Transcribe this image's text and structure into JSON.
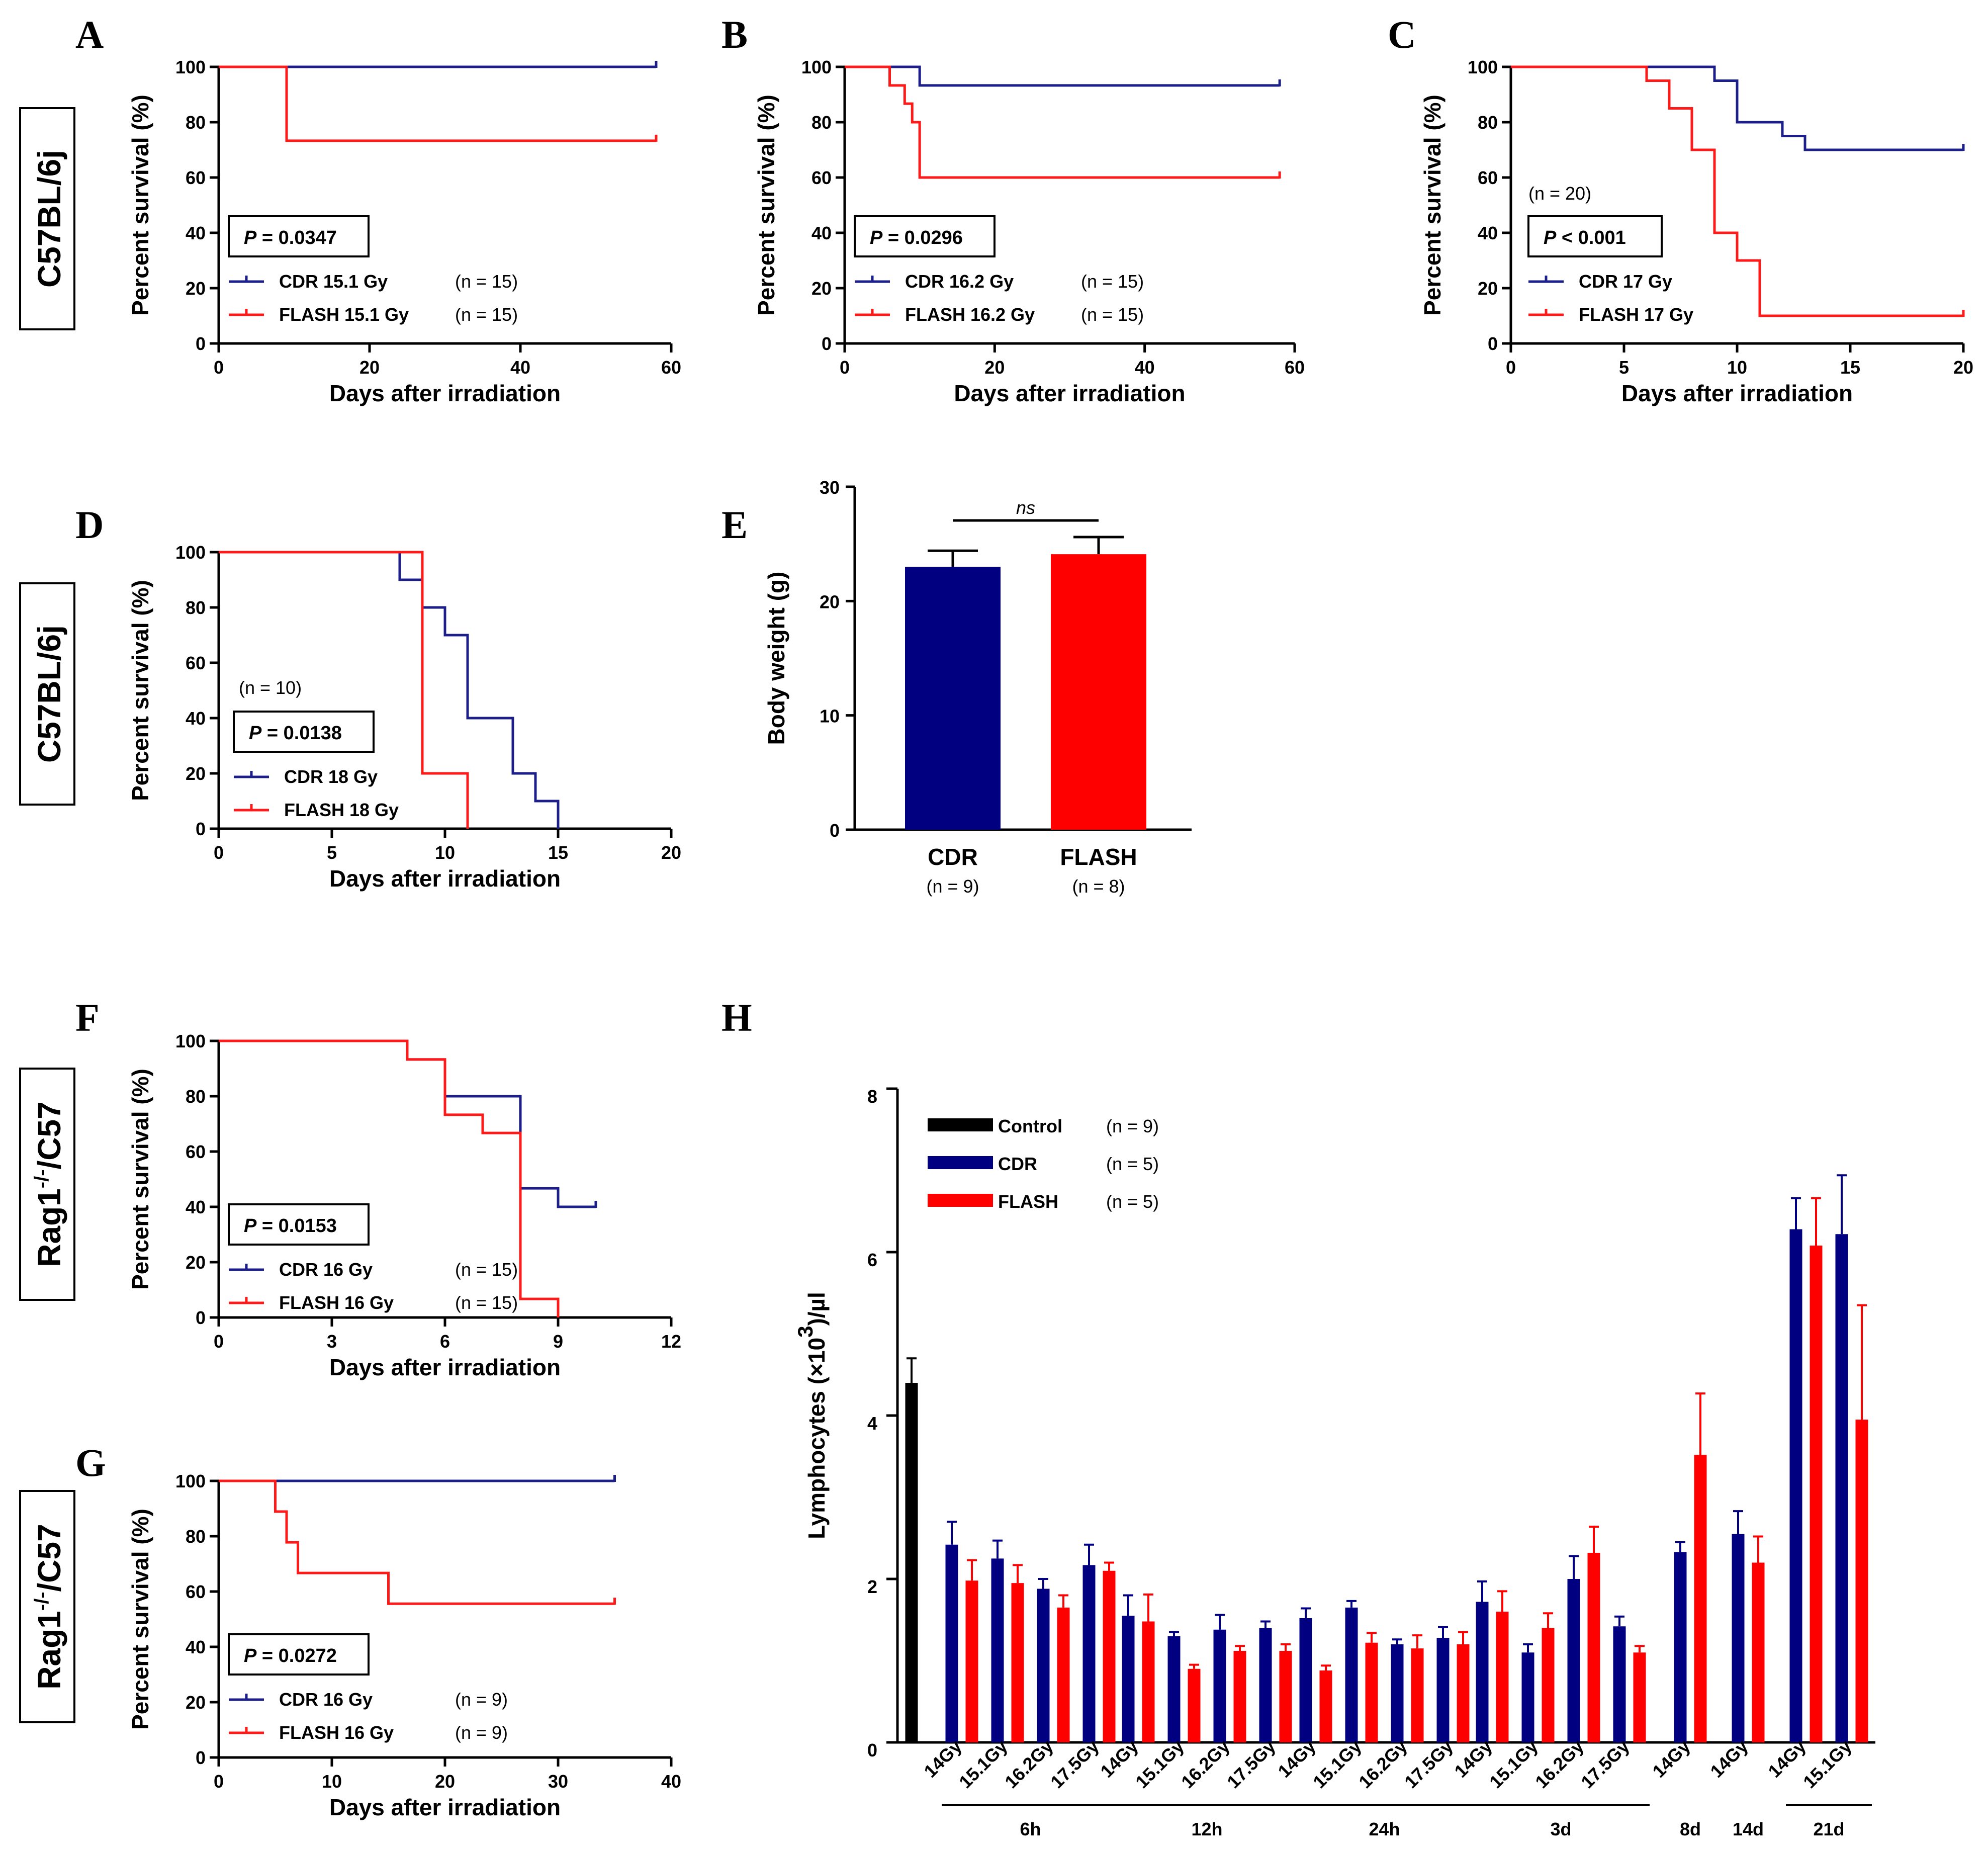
{
  "colors": {
    "cdr": "#1c1f8a",
    "flash": "#ff1a1a",
    "control": "#000000",
    "cdr_bar": "#000080",
    "flash_bar": "#ff0000"
  },
  "strains": [
    "C57BL/6j",
    "C57BL/6j",
    "Rag1",
    "-/-",
    "/C57",
    "Rag1",
    "-/-",
    "/C57"
  ],
  "chart_data": [
    {
      "id": "A",
      "type": "line",
      "letter": "A",
      "xlabel": "Days after irradiation",
      "ylabel": "Percent survival (%)",
      "xlim": [
        0,
        60
      ],
      "ylim": [
        0,
        100
      ],
      "xticks": [
        "0",
        "20",
        "40",
        "60"
      ],
      "yticks": [
        "0",
        "20",
        "40",
        "60",
        "80",
        "100"
      ],
      "pvalue_label": "P",
      "pvalue_text": " = 0.0347",
      "n_note": "",
      "series": [
        {
          "name": "CDR 15.1 Gy",
          "n": "(n = 15)",
          "color": "#1c1f8a",
          "steps": [
            [
              0,
              100
            ],
            [
              58,
              100
            ]
          ]
        },
        {
          "name": "FLASH 15.1 Gy",
          "n": "(n = 15)",
          "color": "#ff1a1a",
          "steps": [
            [
              0,
              100
            ],
            [
              9,
              73.3
            ],
            [
              58,
              73.3
            ]
          ]
        }
      ]
    },
    {
      "id": "B",
      "type": "line",
      "letter": "B",
      "xlabel": "Days after irradiation",
      "ylabel": "Percent survival (%)",
      "xlim": [
        0,
        60
      ],
      "ylim": [
        0,
        100
      ],
      "xticks": [
        "0",
        "20",
        "40",
        "60"
      ],
      "yticks": [
        "0",
        "20",
        "40",
        "60",
        "80",
        "100"
      ],
      "pvalue_label": "P",
      "pvalue_text": " = 0.0296",
      "n_note": "",
      "series": [
        {
          "name": "CDR 16.2 Gy",
          "n": "(n = 15)",
          "color": "#1c1f8a",
          "steps": [
            [
              0,
              100
            ],
            [
              10,
              93.3
            ],
            [
              58,
              93.3
            ]
          ]
        },
        {
          "name": "FLASH 16.2 Gy",
          "n": "(n = 15)",
          "color": "#ff1a1a",
          "steps": [
            [
              0,
              100
            ],
            [
              6,
              93.3
            ],
            [
              8,
              86.7
            ],
            [
              9,
              80
            ],
            [
              10,
              60
            ],
            [
              58,
              60
            ]
          ]
        }
      ]
    },
    {
      "id": "C",
      "type": "line",
      "letter": "C",
      "xlabel": "Days after irradiation",
      "ylabel": "Percent survival (%)",
      "xlim": [
        0,
        20
      ],
      "ylim": [
        0,
        100
      ],
      "xticks": [
        "0",
        "5",
        "10",
        "15",
        "20"
      ],
      "yticks": [
        "0",
        "20",
        "40",
        "60",
        "80",
        "100"
      ],
      "pvalue_label": "P",
      "pvalue_text": " < 0.001",
      "n_note": "(n = 20)",
      "series": [
        {
          "name": "CDR 17 Gy",
          "n": "",
          "color": "#1c1f8a",
          "steps": [
            [
              0,
              100
            ],
            [
              9,
              95
            ],
            [
              10,
              80
            ],
            [
              12,
              75
            ],
            [
              13,
              70
            ],
            [
              20,
              70
            ]
          ]
        },
        {
          "name": "FLASH 17 Gy",
          "n": "",
          "color": "#ff1a1a",
          "steps": [
            [
              0,
              100
            ],
            [
              6,
              95
            ],
            [
              7,
              85
            ],
            [
              8,
              70
            ],
            [
              9,
              40
            ],
            [
              10,
              30
            ],
            [
              11,
              10
            ],
            [
              20,
              10
            ]
          ]
        }
      ]
    },
    {
      "id": "D",
      "type": "line",
      "letter": "D",
      "xlabel": "Days after irradiation",
      "ylabel": "Percent survival (%)",
      "xlim": [
        0,
        20
      ],
      "ylim": [
        0,
        100
      ],
      "xticks": [
        "0",
        "5",
        "10",
        "15",
        "20"
      ],
      "yticks": [
        "0",
        "20",
        "40",
        "60",
        "80",
        "100"
      ],
      "pvalue_label": "P",
      "pvalue_text": " = 0.0138",
      "n_note": "(n = 10)",
      "series": [
        {
          "name": "CDR 18 Gy",
          "n": "",
          "color": "#1c1f8a",
          "steps": [
            [
              0,
              100
            ],
            [
              8,
              90
            ],
            [
              9,
              80
            ],
            [
              10,
              70
            ],
            [
              11,
              40
            ],
            [
              13,
              20
            ],
            [
              14,
              10
            ],
            [
              15,
              0
            ]
          ]
        },
        {
          "name": "FLASH 18 Gy",
          "n": "",
          "color": "#ff1a1a",
          "steps": [
            [
              0,
              100
            ],
            [
              9,
              20
            ],
            [
              11,
              0
            ]
          ]
        }
      ]
    },
    {
      "id": "E",
      "type": "bar",
      "letter": "E",
      "ylabel": "Body weight (g)",
      "ylim": [
        0,
        30
      ],
      "yticks": [
        "0",
        "10",
        "20",
        "30"
      ],
      "categories": [
        "CDR",
        "FLASH"
      ],
      "category_n": [
        "(n = 9)",
        "(n = 8)"
      ],
      "values": [
        23.0,
        24.1
      ],
      "errors": [
        1.4,
        1.5
      ],
      "colors": [
        "#000080",
        "#ff0000"
      ],
      "annotation": "ns"
    },
    {
      "id": "F",
      "type": "line",
      "letter": "F",
      "xlabel": "Days after irradiation",
      "ylabel": "Percent survival (%)",
      "xlim": [
        0,
        12
      ],
      "ylim": [
        0,
        100
      ],
      "xticks": [
        "0",
        "3",
        "6",
        "9",
        "12"
      ],
      "yticks": [
        "0",
        "20",
        "40",
        "60",
        "80",
        "100"
      ],
      "pvalue_label": "P",
      "pvalue_text": " = 0.0153",
      "n_note": "",
      "series": [
        {
          "name": "CDR 16 Gy",
          "n": "(n = 15)",
          "color": "#1c1f8a",
          "steps": [
            [
              0,
              100
            ],
            [
              5,
              93.3
            ],
            [
              6,
              80
            ],
            [
              8,
              46.7
            ],
            [
              9,
              40
            ],
            [
              10,
              40
            ]
          ]
        },
        {
          "name": "FLASH 16 Gy",
          "n": "(n = 15)",
          "color": "#ff1a1a",
          "steps": [
            [
              0,
              100
            ],
            [
              5,
              93.3
            ],
            [
              6,
              73.3
            ],
            [
              7,
              66.7
            ],
            [
              8,
              6.7
            ],
            [
              9,
              0
            ]
          ]
        }
      ]
    },
    {
      "id": "G",
      "type": "line",
      "letter": "G",
      "xlabel": "Days after irradiation",
      "ylabel": "Percent survival (%)",
      "xlim": [
        0,
        40
      ],
      "ylim": [
        0,
        100
      ],
      "xticks": [
        "0",
        "10",
        "20",
        "30",
        "40"
      ],
      "yticks": [
        "0",
        "20",
        "40",
        "60",
        "80",
        "100"
      ],
      "pvalue_label": "P",
      "pvalue_text": " = 0.0272",
      "n_note": "",
      "series": [
        {
          "name": "CDR 16 Gy",
          "n": "(n = 9)",
          "color": "#1c1f8a",
          "steps": [
            [
              0,
              100
            ],
            [
              35,
              100
            ]
          ]
        },
        {
          "name": "FLASH 16 Gy",
          "n": "(n = 9)",
          "color": "#ff1a1a",
          "steps": [
            [
              0,
              100
            ],
            [
              5,
              88.9
            ],
            [
              6,
              77.8
            ],
            [
              7,
              66.7
            ],
            [
              15,
              55.6
            ],
            [
              35,
              55.6
            ]
          ]
        }
      ]
    },
    {
      "id": "H",
      "type": "bar",
      "letter": "H",
      "ylabel_main": "Lymphocytes (×10",
      "ylabel_sup": "3",
      "ylabel_tail": ")/µl",
      "ylim": [
        0,
        8
      ],
      "yticks": [
        "0",
        "2",
        "4",
        "6",
        "8"
      ],
      "legend": [
        {
          "name": "Control",
          "n": "(n = 9)",
          "color": "#000000"
        },
        {
          "name": "CDR",
          "n": "(n = 5)",
          "color": "#000080"
        },
        {
          "name": "FLASH",
          "n": "(n = 5)",
          "color": "#ff0000"
        }
      ],
      "control": {
        "value": 4.4,
        "error": 0.3
      },
      "groups": [
        {
          "time": "6h",
          "doses": [
            "14Gy",
            "15.1Gy",
            "16.2Gy",
            "17.5Gy"
          ],
          "cdr": [
            2.42,
            2.25,
            1.88,
            2.17
          ],
          "cdr_err": [
            0.28,
            0.22,
            0.12,
            0.25
          ],
          "flash": [
            1.98,
            1.95,
            1.65,
            2.1
          ],
          "flash_err": [
            0.25,
            0.22,
            0.15,
            0.1
          ]
        },
        {
          "time": "12h",
          "doses": [
            "14Gy",
            "15.1Gy",
            "16.2Gy",
            "17.5Gy"
          ],
          "cdr": [
            1.55,
            1.3,
            1.38,
            1.4
          ],
          "cdr_err": [
            0.25,
            0.05,
            0.18,
            0.08
          ],
          "flash": [
            1.48,
            0.9,
            1.12,
            1.12
          ],
          "flash_err": [
            0.33,
            0.05,
            0.06,
            0.08
          ]
        },
        {
          "time": "24h",
          "doses": [
            "14Gy",
            "15.1Gy",
            "16.2Gy",
            "17.5Gy"
          ],
          "cdr": [
            1.52,
            1.65,
            1.2,
            1.28
          ],
          "cdr_err": [
            0.12,
            0.08,
            0.06,
            0.13
          ],
          "flash": [
            0.88,
            1.22,
            1.15,
            1.2
          ],
          "flash_err": [
            0.06,
            0.12,
            0.16,
            0.15
          ]
        },
        {
          "time": "3d",
          "doses": [
            "14Gy",
            "15.1Gy",
            "16.2Gy",
            "17.5Gy"
          ],
          "cdr": [
            1.72,
            1.1,
            2.0,
            1.42
          ],
          "cdr_err": [
            0.25,
            0.1,
            0.28,
            0.12
          ],
          "flash": [
            1.6,
            1.4,
            2.32,
            1.1
          ],
          "flash_err": [
            0.25,
            0.18,
            0.32,
            0.08
          ]
        },
        {
          "time": "8d",
          "doses": [
            "14Gy"
          ],
          "cdr": [
            2.33
          ],
          "cdr_err": [
            0.12
          ],
          "flash": [
            3.52
          ],
          "flash_err": [
            0.75
          ]
        },
        {
          "time": "14d",
          "doses": [
            "14Gy"
          ],
          "cdr": [
            2.55
          ],
          "cdr_err": [
            0.28
          ],
          "flash": [
            2.2
          ],
          "flash_err": [
            0.32
          ]
        },
        {
          "time": "21d",
          "doses": [
            "14Gy",
            "15.1Gy"
          ],
          "cdr": [
            6.28,
            6.22
          ],
          "cdr_err": [
            0.38,
            0.72
          ],
          "flash": [
            6.08,
            3.95
          ],
          "flash_err": [
            0.58,
            1.4
          ]
        }
      ]
    }
  ]
}
